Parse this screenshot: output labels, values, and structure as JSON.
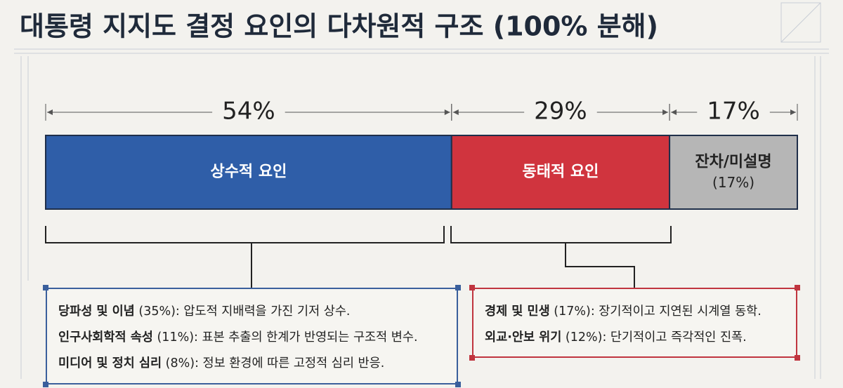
{
  "chart_data": {
    "type": "stacked-bar",
    "title": "대통령 지지도 결정 요인의 다차원적 구조 (100% 분해)",
    "xlim": [
      0,
      100
    ],
    "series": [
      {
        "name": "상수적 요인",
        "color": "#2f5ea8",
        "values": [
          54
        ],
        "value_labels": [
          "54%"
        ]
      },
      {
        "name": "동태적 요인",
        "color": "#d0343e",
        "values": [
          29
        ],
        "value_labels": [
          "29%"
        ]
      },
      {
        "name": "잔차/미설명",
        "color": "#b6b6b6",
        "values": [
          17
        ],
        "value_labels": [
          "17%"
        ],
        "sublabel": "(17%)"
      }
    ],
    "annotations": [
      {
        "color": "#3a5f9c",
        "items": [
          {
            "term": "당파성 및 이념",
            "detail": "(35%): 압도적 지배력을 가진 기저 상수."
          },
          {
            "term": "인구사회학적 속성",
            "detail": "(11%): 표본 추출의 한계가 반영되는 구조적 변수."
          },
          {
            "term": "미디어 및 정치 심리",
            "detail": "(8%): 정보 환경에 따른 고정적 심리 반응."
          }
        ]
      },
      {
        "color": "#c0353f",
        "items": [
          {
            "term": "경제 및 민생",
            "detail": "(17%): 장기적이고 지연된 시계열 동학."
          },
          {
            "term": "외교·안보 위기",
            "detail": "(12%): 단기적이고 즉각적인 진폭."
          }
        ]
      }
    ]
  }
}
